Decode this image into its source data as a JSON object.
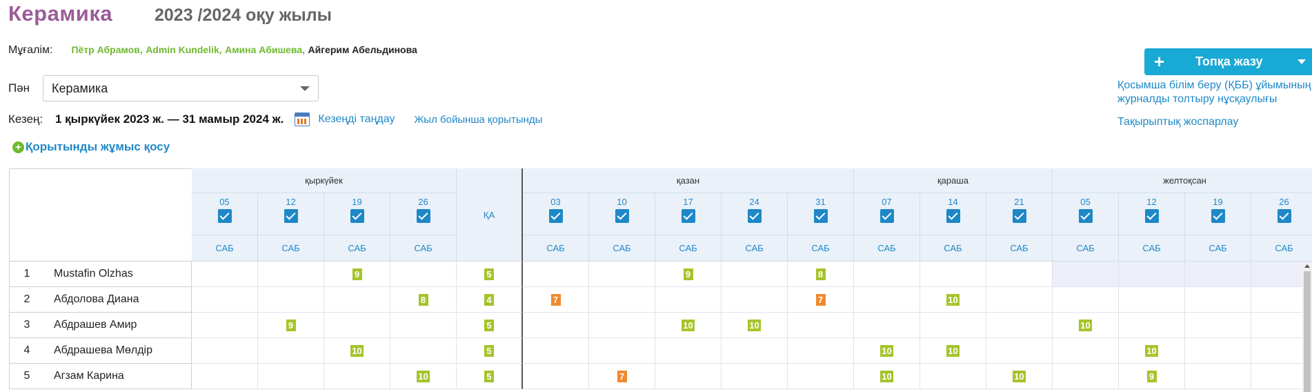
{
  "header": {
    "title": "Керамика",
    "year": "2023 /2024 оқу жылы"
  },
  "teachers": {
    "label": "Мұғалім:",
    "names": [
      {
        "text": "Пётр Абрамов,",
        "color": "green"
      },
      {
        "text": "Admin Kundelik,",
        "color": "green"
      },
      {
        "text": "Амина Абишева,",
        "color": "green"
      },
      {
        "text": "Айгерим Абельдинова",
        "color": "dark"
      }
    ]
  },
  "subject": {
    "label": "Пән",
    "value": "Керамика"
  },
  "period": {
    "label": "Кезең:",
    "dates": "1 қыркүйек 2023 ж. — 31 мамыр 2024 ж.",
    "choose_label": "Кезеңді таңдау",
    "yearly_label": "Жыл бойынша қорытынды"
  },
  "add_work": "Қорытынды жұмыс қосу",
  "record_button": {
    "plus": "+",
    "label": "Топқа жазу"
  },
  "side_links": {
    "instructions_line1": "Қосымша білім беру (ҚББ) ұйымының",
    "instructions_line2": "журналды толтыру нұсқаулығы",
    "planning": "Тақырыптық жоспарлау"
  },
  "grid": {
    "ka_label": "ҚА",
    "lesson_type": "САБ",
    "months": [
      {
        "name": "қыркүйек",
        "dates": [
          "05",
          "12",
          "19",
          "26"
        ]
      },
      {
        "name": "қазан",
        "dates": [
          "03",
          "10",
          "17",
          "24",
          "31"
        ]
      },
      {
        "name": "қараша",
        "dates": [
          "07",
          "14",
          "21"
        ]
      },
      {
        "name": "желтоқсан",
        "dates": [
          "05",
          "12",
          "19",
          "26"
        ]
      }
    ],
    "students": [
      {
        "num": "1",
        "name": "Mustafin Olzhas",
        "ka": "5",
        "grades": [
          "",
          "",
          "9",
          "",
          "",
          "",
          "9",
          "",
          "8",
          "",
          "",
          "",
          "",
          "",
          "",
          ""
        ]
      },
      {
        "num": "2",
        "name": "Абдолова Диана",
        "ka": "4",
        "grades": [
          "",
          "",
          "",
          "8",
          "7",
          "",
          "",
          "",
          "7",
          "",
          "10",
          "",
          "",
          "",
          "",
          ""
        ]
      },
      {
        "num": "3",
        "name": "Абдрашев Амир",
        "ka": "5",
        "grades": [
          "",
          "9",
          "",
          "",
          "",
          "",
          "10",
          "10",
          "",
          "",
          "",
          "",
          "10",
          "",
          "",
          ""
        ]
      },
      {
        "num": "4",
        "name": "Абдрашева Мөлдір",
        "ka": "5",
        "grades": [
          "",
          "",
          "10",
          "",
          "",
          "",
          "",
          "",
          "",
          "10",
          "10",
          "",
          "",
          "10",
          "",
          ""
        ]
      },
      {
        "num": "5",
        "name": "Агзам Карина",
        "ka": "5",
        "grades": [
          "",
          "",
          "",
          "10",
          "",
          "7",
          "",
          "",
          "",
          "10",
          "",
          "10",
          "",
          "9",
          "",
          ""
        ]
      }
    ],
    "colors": {
      "low_mark": "#f08a2e",
      "high_mark": "#a6c42a",
      "header_bg": "#eaf1f9",
      "link": "#1e88c7"
    }
  }
}
